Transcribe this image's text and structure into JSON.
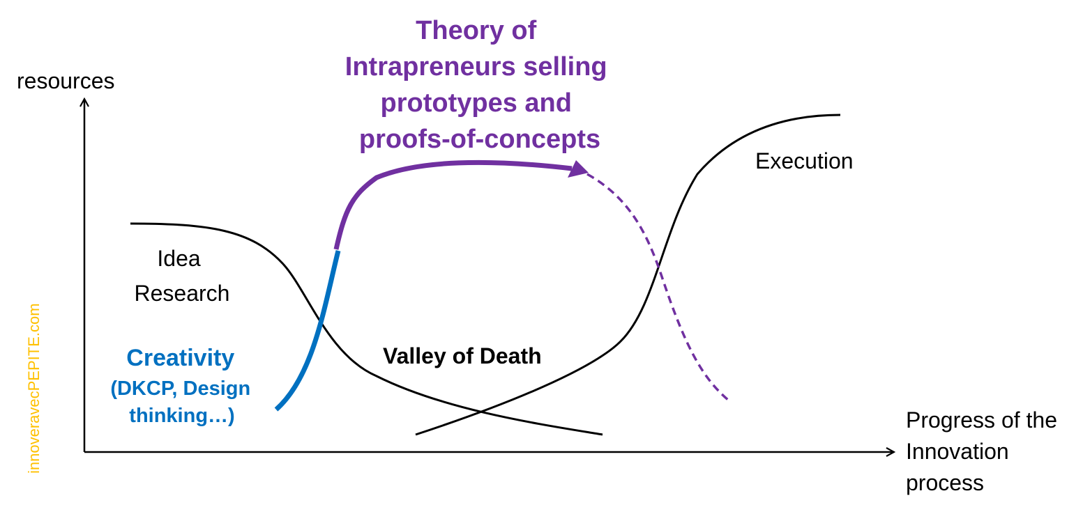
{
  "axes": {
    "y_label": "resources",
    "x_label_lines": [
      "Progress of the",
      "Innovation",
      "process"
    ]
  },
  "title_lines": [
    "Theory of",
    "Intrapreneurs selling",
    "prototypes and",
    "proofs-of-concepts"
  ],
  "phases": {
    "idea_research_lines": [
      "Idea",
      "Research"
    ],
    "valley": "Valley of Death",
    "execution": "Execution",
    "creativity_title": "Creativity",
    "creativity_detail_lines": [
      "(DKCP, Design",
      "thinking…)"
    ]
  },
  "watermark": "innoveravecPEPITE.com",
  "colors": {
    "purple": "#7030a0",
    "blue": "#0070c0",
    "black": "#000000",
    "watermark": "#ffc000"
  }
}
